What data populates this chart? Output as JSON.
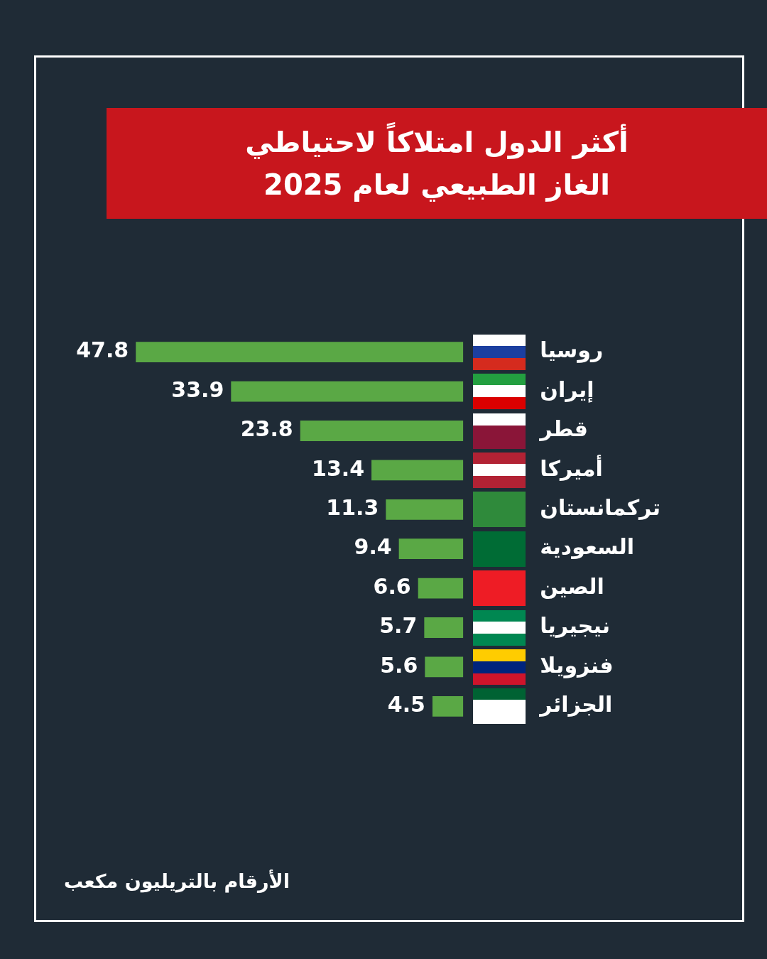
{
  "chart_data": {
    "type": "bar",
    "orientation": "horizontal",
    "title": "أكثر الدول امتلاكاً لاحتياطي الغاز الطبيعي لعام 2025",
    "categories": [
      "روسيا",
      "إيران",
      "قطر",
      "أميركا",
      "تركمانستان",
      "السعودية",
      "الصين",
      "نيجيريا",
      "فنزويلا",
      "الجزائر"
    ],
    "values": [
      47.8,
      33.9,
      23.8,
      13.4,
      11.3,
      9.4,
      6.6,
      5.7,
      5.6,
      4.5
    ],
    "color": "#5aa845",
    "data_labels": true,
    "legend": false,
    "annotations": [
      "الأرقام بالتريليون مكعب"
    ]
  }
}
